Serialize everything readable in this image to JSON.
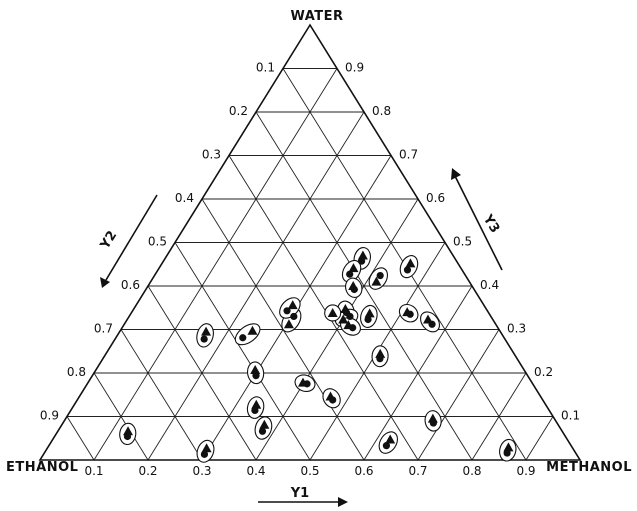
{
  "chart_data": {
    "type": "scatter",
    "subtype": "ternary",
    "corners": {
      "top": "WATER",
      "left": "ETHANOL",
      "right": "METHANOL"
    },
    "axes": {
      "y1": {
        "label": "Y1",
        "ticks": [
          "0.1",
          "0.2",
          "0.3",
          "0.4",
          "0.5",
          "0.6",
          "0.7",
          "0.8",
          "0.9"
        ]
      },
      "y2": {
        "label": "Y2",
        "ticks": [
          "0.1",
          "0.2",
          "0.3",
          "0.4",
          "0.5",
          "0.6",
          "0.7",
          "0.8",
          "0.9"
        ]
      },
      "y3": {
        "label": "Y3",
        "ticks": [
          "0.9",
          "0.8",
          "0.7",
          "0.6",
          "0.5",
          "0.4",
          "0.3",
          "0.2",
          "0.1"
        ]
      }
    },
    "grid": true,
    "series": [
      {
        "marker": "triangle",
        "points": [
          {
            "y1": 0.363,
            "y3": 0.47
          },
          {
            "y1": 0.36,
            "y3": 0.441
          },
          {
            "y1": 0.38,
            "y3": 0.4
          },
          {
            "y1": 0.418,
            "y3": 0.41
          },
          {
            "y1": 0.305,
            "y3": 0.312
          },
          {
            "y1": 0.245,
            "y3": 0.297
          },
          {
            "y1": 0.16,
            "y3": 0.295
          },
          {
            "y1": 0.13,
            "y3": 0.066
          },
          {
            "y1": 0.295,
            "y3": 0.207
          },
          {
            "y1": 0.337,
            "y3": 0.127
          },
          {
            "y1": 0.375,
            "y3": 0.081
          },
          {
            "y1": 0.295,
            "y3": 0.027
          },
          {
            "y1": 0.398,
            "y3": 0.178
          },
          {
            "y1": 0.392,
            "y3": 0.347
          },
          {
            "y1": 0.4,
            "y3": 0.323
          },
          {
            "y1": 0.416,
            "y3": 0.31
          },
          {
            "y1": 0.442,
            "y3": 0.337
          },
          {
            "y1": 0.46,
            "y3": 0.452
          },
          {
            "y1": 0.51,
            "y3": 0.34
          },
          {
            "y1": 0.557,
            "y3": 0.323
          },
          {
            "y1": 0.508,
            "y3": 0.244
          },
          {
            "y1": 0.465,
            "y3": 0.146
          },
          {
            "y1": 0.625,
            "y3": 0.047
          },
          {
            "y1": 0.68,
            "y3": 0.095
          },
          {
            "y1": 0.853,
            "y3": 0.029
          },
          {
            "y1": 0.29,
            "y3": 0.356
          },
          {
            "y1": 0.373,
            "y3": 0.338
          }
        ]
      },
      {
        "marker": "circle",
        "points": [
          {
            "y1": 0.367,
            "y3": 0.457
          },
          {
            "y1": 0.36,
            "y3": 0.427
          },
          {
            "y1": 0.386,
            "y3": 0.392
          },
          {
            "y1": 0.418,
            "y3": 0.424
          },
          {
            "y1": 0.305,
            "y3": 0.33
          },
          {
            "y1": 0.235,
            "y3": 0.281
          },
          {
            "y1": 0.165,
            "y3": 0.278
          },
          {
            "y1": 0.135,
            "y3": 0.054
          },
          {
            "y1": 0.303,
            "y3": 0.194
          },
          {
            "y1": 0.341,
            "y3": 0.114
          },
          {
            "y1": 0.379,
            "y3": 0.066
          },
          {
            "y1": 0.298,
            "y3": 0.013
          },
          {
            "y1": 0.407,
            "y3": 0.175
          },
          {
            "y1": 0.398,
            "y3": 0.339
          },
          {
            "y1": 0.409,
            "y3": 0.33
          },
          {
            "y1": 0.427,
            "y3": 0.304
          },
          {
            "y1": 0.446,
            "y3": 0.323
          },
          {
            "y1": 0.462,
            "y3": 0.437
          },
          {
            "y1": 0.518,
            "y3": 0.335
          },
          {
            "y1": 0.57,
            "y3": 0.312
          },
          {
            "y1": 0.513,
            "y3": 0.233
          },
          {
            "y1": 0.473,
            "y3": 0.138
          },
          {
            "y1": 0.625,
            "y3": 0.033
          },
          {
            "y1": 0.686,
            "y3": 0.085
          },
          {
            "y1": 0.857,
            "y3": 0.016
          },
          {
            "y1": 0.286,
            "y3": 0.343
          }
        ]
      }
    ]
  }
}
